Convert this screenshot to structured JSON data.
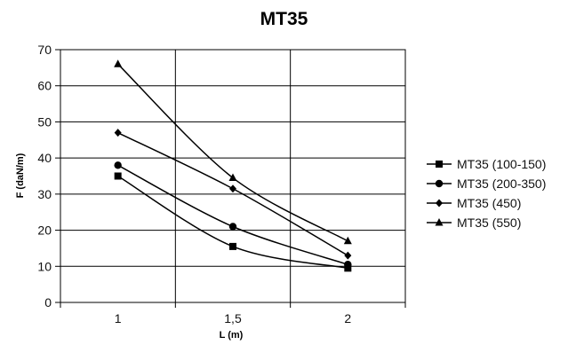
{
  "chart_data": {
    "type": "line",
    "title": "MT35",
    "xlabel": "L (m)",
    "ylabel": "F (daN/m)",
    "x_tick_labels": [
      "1",
      "1,5",
      "2"
    ],
    "x": [
      1,
      1.5,
      2
    ],
    "xlim": [
      0.75,
      2.25
    ],
    "ylim": [
      0,
      70
    ],
    "y_ticks": [
      0,
      10,
      20,
      30,
      40,
      50,
      60,
      70
    ],
    "grid": true,
    "legend": "right",
    "series": [
      {
        "name": "MT35 (100-150)",
        "marker": "square",
        "values": [
          35,
          15.5,
          9.5
        ]
      },
      {
        "name": "MT35 (200-350)",
        "marker": "circle",
        "values": [
          38,
          21,
          10.5
        ]
      },
      {
        "name": "MT35 (450)",
        "marker": "diamond",
        "values": [
          47,
          31.5,
          13
        ]
      },
      {
        "name": "MT35 (550)",
        "marker": "triangle",
        "values": [
          66,
          34.5,
          17
        ]
      }
    ]
  }
}
